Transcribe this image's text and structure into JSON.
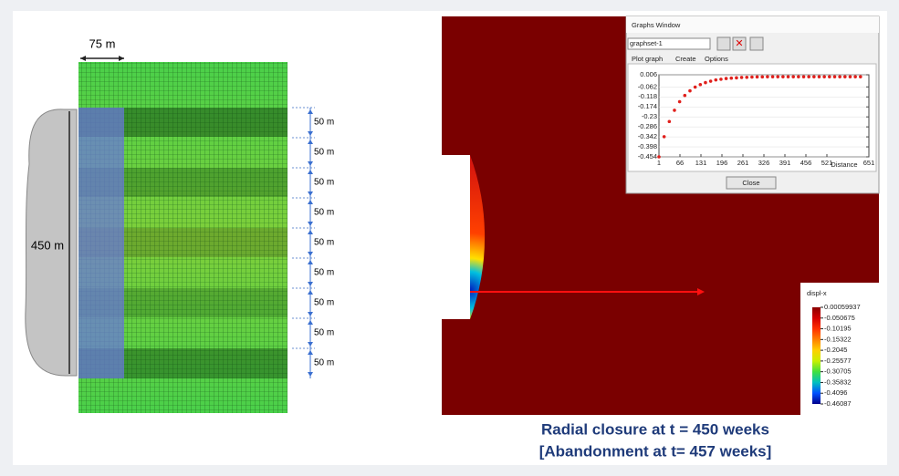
{
  "mesh": {
    "width_label": "75 m",
    "height_label": "450 m",
    "spacing_labels": [
      "50 m",
      "50 m",
      "50 m",
      "50 m",
      "50 m",
      "50 m",
      "50 m",
      "50 m",
      "50 m"
    ]
  },
  "graph_window": {
    "title": "Graphs Window",
    "graphset": "graphset-1",
    "tabs": [
      "Plot graph",
      "Create",
      "Options"
    ],
    "close_button": "Close"
  },
  "chart_data": {
    "type": "scatter",
    "x_label": "Distance",
    "color": "#e0201c",
    "x": [
      1,
      17,
      33,
      49,
      65,
      81,
      97,
      113,
      129,
      145,
      161,
      177,
      193,
      209,
      225,
      241,
      257,
      273,
      289,
      305,
      321,
      337,
      353,
      369,
      385,
      401,
      417,
      433,
      449,
      465,
      481,
      497,
      513,
      529,
      545,
      561,
      577,
      593,
      609,
      625
    ],
    "values": [
      -0.454,
      -0.341,
      -0.256,
      -0.193,
      -0.145,
      -0.11,
      -0.084,
      -0.063,
      -0.049,
      -0.038,
      -0.03,
      -0.023,
      -0.019,
      -0.015,
      -0.013,
      -0.011,
      -0.009,
      -0.008,
      -0.007,
      -0.006,
      -0.006,
      -0.005,
      -0.005,
      -0.005,
      -0.005,
      -0.005,
      -0.005,
      -0.005,
      -0.005,
      -0.005,
      -0.005,
      -0.005,
      -0.005,
      -0.005,
      -0.005,
      -0.005,
      -0.005,
      -0.005,
      -0.005,
      -0.005
    ],
    "xlim": [
      1,
      651
    ],
    "ylim": [
      -0.454,
      0.006
    ],
    "xticks": [
      1,
      66,
      131,
      196,
      261,
      326,
      391,
      456,
      521,
      651
    ],
    "yticks": [
      0.006,
      -0.062,
      -0.118,
      -0.174,
      -0.23,
      -0.286,
      -0.342,
      -0.398,
      -0.454
    ],
    "grid": true
  },
  "colorbar": {
    "title": "displ-x",
    "ticks": [
      0.00059937,
      -0.050675,
      -0.10195,
      -0.15322,
      -0.2045,
      -0.25577,
      -0.30705,
      -0.35832,
      -0.4096,
      -0.46087
    ],
    "colors": [
      "#8b0000",
      "#d40000",
      "#ff3000",
      "#ff8000",
      "#ffd000",
      "#c8f000",
      "#40e040",
      "#00c0c0",
      "#0050ff",
      "#00008b"
    ]
  },
  "caption": [
    "Radial closure at t = 450 weeks",
    "[Abandonment at t= 457 weeks]"
  ]
}
